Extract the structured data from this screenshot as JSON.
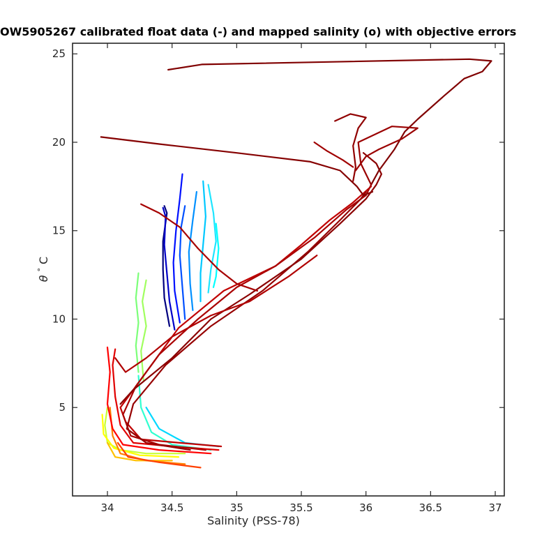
{
  "title": "OW5905267 calibrated float data (-) and mapped salinity (o) with objective errors",
  "chart_data": {
    "type": "line",
    "title": "OW5905267 calibrated float data (-) and mapped salinity (o) with objective errors",
    "xlabel": "Salinity (PSS-78)",
    "ylabel_symbol": "θ",
    "ylabel_degree": "°",
    "ylabel_unit": "C",
    "xlim": [
      33.73,
      37.07
    ],
    "ylim": [
      0.0,
      25.6
    ],
    "xticks": [
      34,
      34.5,
      35,
      35.5,
      36,
      36.5,
      37
    ],
    "xtick_labels": [
      "34",
      "34.5",
      "35",
      "35.5",
      "36",
      "36.5",
      "37"
    ],
    "yticks": [
      5,
      10,
      15,
      20,
      25
    ],
    "ytick_labels": [
      "5",
      "10",
      "15",
      "20",
      "25"
    ],
    "grid": false,
    "colormap": "jet",
    "series": [
      {
        "color": "#00007f",
        "points": [
          [
            34.48,
            9.6
          ],
          [
            34.44,
            11.2
          ],
          [
            34.43,
            12.8
          ],
          [
            34.43,
            14.4
          ],
          [
            34.46,
            16.0
          ],
          [
            34.44,
            16.4
          ]
        ]
      },
      {
        "color": "#0000c8",
        "points": [
          [
            34.52,
            9.4
          ],
          [
            34.48,
            11.0
          ],
          [
            34.46,
            12.6
          ],
          [
            34.44,
            14.2
          ],
          [
            34.45,
            15.8
          ],
          [
            34.43,
            16.3
          ]
        ]
      },
      {
        "color": "#0010ff",
        "points": [
          [
            34.56,
            9.8
          ],
          [
            34.52,
            11.6
          ],
          [
            34.51,
            13.2
          ],
          [
            34.53,
            15.0
          ],
          [
            34.56,
            16.8
          ],
          [
            34.58,
            18.2
          ]
        ]
      },
      {
        "color": "#0050ff",
        "points": [
          [
            34.6,
            10.0
          ],
          [
            34.58,
            11.8
          ],
          [
            34.56,
            13.6
          ],
          [
            34.57,
            15.2
          ],
          [
            34.6,
            16.4
          ]
        ]
      },
      {
        "color": "#0090ff",
        "points": [
          [
            34.66,
            10.5
          ],
          [
            34.64,
            12.0
          ],
          [
            34.63,
            13.8
          ],
          [
            34.66,
            15.6
          ],
          [
            34.69,
            17.2
          ]
        ]
      },
      {
        "color": "#00c8ff",
        "points": [
          [
            34.72,
            11.0
          ],
          [
            34.72,
            12.6
          ],
          [
            34.74,
            14.2
          ],
          [
            34.76,
            15.8
          ],
          [
            34.74,
            17.8
          ]
        ]
      },
      {
        "color": "#1ee5ff",
        "points": [
          [
            34.78,
            11.5
          ],
          [
            34.8,
            12.8
          ],
          [
            34.84,
            14.4
          ],
          [
            34.82,
            16.0
          ],
          [
            34.78,
            17.6
          ]
        ]
      },
      {
        "color": "#00ffff",
        "points": [
          [
            34.82,
            11.8
          ],
          [
            34.84,
            12.4
          ],
          [
            34.86,
            14.0
          ],
          [
            34.84,
            15.4
          ]
        ]
      },
      {
        "color": "#00d8ff",
        "points": [
          [
            34.86,
            2.8
          ],
          [
            34.6,
            3.0
          ],
          [
            34.4,
            3.8
          ],
          [
            34.3,
            5.0
          ]
        ]
      },
      {
        "color": "#30ffd0",
        "points": [
          [
            34.8,
            2.6
          ],
          [
            34.5,
            2.9
          ],
          [
            34.34,
            3.6
          ],
          [
            34.26,
            5.0
          ],
          [
            34.24,
            6.8
          ]
        ]
      },
      {
        "color": "#7cff79",
        "points": [
          [
            34.24,
            7.0
          ],
          [
            34.22,
            8.5
          ],
          [
            34.24,
            9.8
          ],
          [
            34.22,
            11.2
          ],
          [
            34.24,
            12.6
          ]
        ]
      },
      {
        "color": "#a0ff5f",
        "points": [
          [
            34.28,
            6.5
          ],
          [
            34.26,
            8.2
          ],
          [
            34.3,
            9.6
          ],
          [
            34.27,
            11.0
          ],
          [
            34.3,
            12.2
          ]
        ]
      },
      {
        "color": "#c8ff37",
        "points": [
          [
            34.6,
            2.4
          ],
          [
            34.3,
            2.4
          ],
          [
            34.1,
            2.6
          ],
          [
            34.0,
            3.0
          ],
          [
            33.98,
            4.0
          ],
          [
            34.0,
            5.0
          ]
        ]
      },
      {
        "color": "#ffff00",
        "points": [
          [
            34.55,
            2.2
          ],
          [
            34.25,
            2.3
          ],
          [
            34.05,
            2.7
          ],
          [
            33.97,
            3.5
          ],
          [
            33.96,
            4.6
          ]
        ]
      },
      {
        "color": "#ffc000",
        "points": [
          [
            34.5,
            2.0
          ],
          [
            34.22,
            2.0
          ],
          [
            34.06,
            2.2
          ],
          [
            34.0,
            3.0
          ]
        ]
      },
      {
        "color": "#ff8000",
        "points": [
          [
            34.6,
            1.8
          ],
          [
            34.3,
            2.0
          ],
          [
            34.1,
            2.4
          ],
          [
            34.04,
            3.4
          ],
          [
            34.02,
            5.0
          ]
        ]
      },
      {
        "color": "#ff4000",
        "points": [
          [
            34.72,
            1.6
          ],
          [
            34.4,
            1.9
          ],
          [
            34.16,
            2.2
          ],
          [
            34.08,
            3.0
          ]
        ]
      },
      {
        "color": "#ff0000",
        "points": [
          [
            34.8,
            2.4
          ],
          [
            34.4,
            2.6
          ],
          [
            34.12,
            2.9
          ],
          [
            34.04,
            3.8
          ],
          [
            34.0,
            5.2
          ],
          [
            34.02,
            7.0
          ],
          [
            34.0,
            8.4
          ]
        ]
      },
      {
        "color": "#e00000",
        "points": [
          [
            34.86,
            2.6
          ],
          [
            34.5,
            2.8
          ],
          [
            34.2,
            3.0
          ],
          [
            34.1,
            4.0
          ],
          [
            34.06,
            5.6
          ],
          [
            34.04,
            7.4
          ],
          [
            34.06,
            8.3
          ]
        ]
      },
      {
        "color": "#c00000",
        "points": [
          [
            34.88,
            2.8
          ],
          [
            34.56,
            3.0
          ],
          [
            34.26,
            3.2
          ],
          [
            34.14,
            4.2
          ],
          [
            34.1,
            5.0
          ],
          [
            34.3,
            7.0
          ],
          [
            34.55,
            9.5
          ],
          [
            34.9,
            11.6
          ],
          [
            35.3,
            13.0
          ],
          [
            35.5,
            14.2
          ],
          [
            35.72,
            15.6
          ],
          [
            35.9,
            16.6
          ],
          [
            36.04,
            17.5
          ]
        ]
      },
      {
        "color": "#aa0000",
        "points": [
          [
            34.76,
            2.6
          ],
          [
            34.4,
            2.9
          ],
          [
            34.18,
            3.4
          ],
          [
            34.12,
            4.6
          ],
          [
            34.22,
            6.2
          ],
          [
            34.4,
            8.0
          ],
          [
            34.7,
            10.0
          ],
          [
            35.0,
            11.8
          ],
          [
            35.3,
            13.0
          ],
          [
            35.6,
            14.6
          ],
          [
            35.85,
            16.2
          ],
          [
            36.0,
            17.0
          ],
          [
            36.04,
            17.6
          ]
        ]
      },
      {
        "color": "#960000",
        "points": [
          [
            34.64,
            2.6
          ],
          [
            34.3,
            3.0
          ],
          [
            34.15,
            3.8
          ],
          [
            34.2,
            5.2
          ],
          [
            34.45,
            7.4
          ],
          [
            34.8,
            9.6
          ],
          [
            35.2,
            11.6
          ],
          [
            35.55,
            13.8
          ],
          [
            35.8,
            15.6
          ],
          [
            35.96,
            16.8
          ],
          [
            36.0,
            17.2
          ]
        ]
      },
      {
        "color": "#8b0000",
        "points": [
          [
            34.1,
            5.2
          ],
          [
            34.2,
            6.0
          ],
          [
            34.5,
            7.8
          ],
          [
            34.8,
            10.0
          ],
          [
            35.1,
            11.4
          ],
          [
            35.5,
            13.4
          ],
          [
            35.8,
            15.4
          ],
          [
            36.0,
            16.8
          ],
          [
            36.08,
            17.6
          ],
          [
            36.12,
            18.2
          ],
          [
            36.08,
            18.8
          ],
          [
            35.98,
            19.4
          ]
        ]
      },
      {
        "color": "#800000",
        "points": [
          [
            34.47,
            24.1
          ],
          [
            34.73,
            24.4
          ],
          [
            36.8,
            24.7
          ],
          [
            36.97,
            24.6
          ],
          [
            36.9,
            24.0
          ],
          [
            36.76,
            23.6
          ],
          [
            36.6,
            22.6
          ],
          [
            36.4,
            21.3
          ],
          [
            36.3,
            20.6
          ],
          [
            36.22,
            19.6
          ],
          [
            36.1,
            18.4
          ],
          [
            36.04,
            17.6
          ]
        ]
      },
      {
        "color": "#850000",
        "points": [
          [
            33.95,
            20.3
          ],
          [
            34.4,
            19.9
          ],
          [
            35.0,
            19.4
          ],
          [
            35.57,
            18.9
          ],
          [
            35.8,
            18.4
          ],
          [
            35.93,
            17.5
          ],
          [
            35.98,
            17.0
          ],
          [
            36.05,
            17.2
          ]
        ]
      },
      {
        "color": "#900000",
        "points": [
          [
            35.9,
            17.8
          ],
          [
            35.92,
            18.6
          ],
          [
            35.9,
            19.8
          ],
          [
            35.94,
            20.8
          ],
          [
            36.0,
            21.4
          ],
          [
            35.88,
            21.6
          ],
          [
            35.76,
            21.2
          ]
        ]
      },
      {
        "color": "#9a0000",
        "points": [
          [
            36.04,
            17.6
          ],
          [
            36.0,
            18.2
          ],
          [
            35.96,
            18.8
          ],
          [
            35.94,
            20.0
          ],
          [
            36.2,
            20.9
          ],
          [
            36.4,
            20.8
          ],
          [
            36.28,
            20.2
          ],
          [
            36.1,
            19.6
          ],
          [
            36.0,
            19.2
          ],
          [
            35.92,
            18.4
          ]
        ]
      },
      {
        "color": "#a00000",
        "points": [
          [
            35.6,
            20.0
          ],
          [
            35.7,
            19.5
          ],
          [
            35.82,
            19.0
          ],
          [
            35.9,
            18.6
          ]
        ]
      },
      {
        "color": "#a60000",
        "points": [
          [
            34.26,
            16.5
          ],
          [
            34.4,
            16.0
          ],
          [
            34.56,
            15.2
          ],
          [
            34.7,
            14.0
          ],
          [
            34.86,
            12.8
          ],
          [
            35.0,
            12.0
          ],
          [
            35.16,
            11.6
          ]
        ]
      },
      {
        "color": "#b00000",
        "points": [
          [
            34.06,
            7.8
          ],
          [
            34.14,
            7.0
          ],
          [
            34.3,
            7.8
          ],
          [
            34.5,
            9.0
          ],
          [
            34.8,
            10.2
          ],
          [
            35.1,
            11.0
          ],
          [
            35.4,
            12.4
          ],
          [
            35.62,
            13.6
          ]
        ]
      }
    ]
  }
}
